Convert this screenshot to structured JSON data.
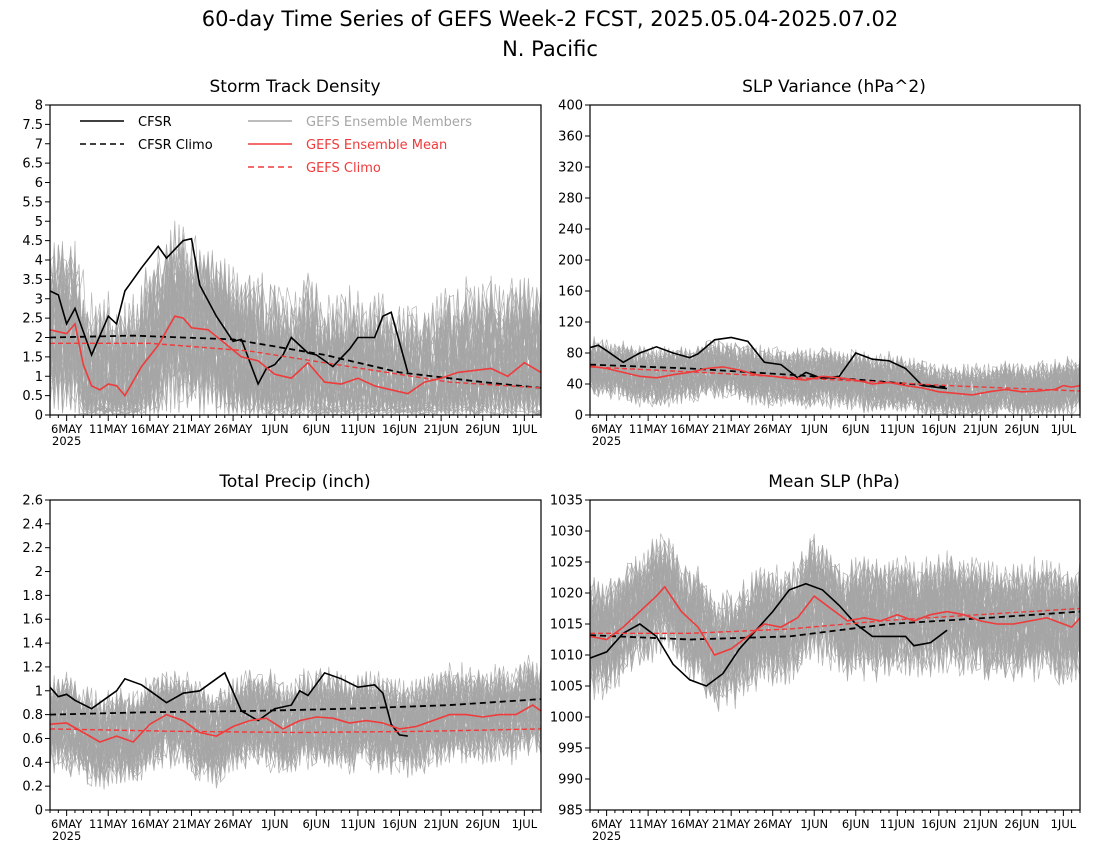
{
  "figure": {
    "title_line1": "60-day Time Series of GEFS Week-2 FCST, 2025.05.04-2025.07.02",
    "title_line2": "N. Pacific"
  },
  "colors": {
    "cfsr": "#000000",
    "ensemble_members": "#a6a6a6",
    "ensemble_mean": "#ef3b3b",
    "gefs_climo": "#ef3b3b"
  },
  "legend": {
    "cfsr": "CFSR",
    "cfsr_climo": "CFSR Climo",
    "members": "GEFS Ensemble Members",
    "mean": "GEFS Ensemble Mean",
    "gefs_climo": "GEFS Climo"
  },
  "x_axis": {
    "tick_labels": [
      "6MAY",
      "11MAY",
      "16MAY",
      "21MAY",
      "26MAY",
      "1JUN",
      "6JUN",
      "11JUN",
      "16JUN",
      "21JUN",
      "26JUN",
      "1JUL"
    ],
    "year_label": "2025"
  },
  "chart_data": [
    {
      "type": "line",
      "title": "Storm Track Density",
      "ylim": [
        0,
        8
      ],
      "yticks": [
        "0",
        "0.5",
        "1",
        "1.5",
        "2",
        "2.5",
        "3",
        "3.5",
        "4",
        "4.5",
        "5",
        "5.5",
        "6",
        "6.5",
        "7",
        "7.5",
        "8"
      ],
      "legend_placement": "top-left",
      "x_start": "2025-05-04",
      "x_end": "2025-07-02",
      "ensemble_band": [
        0,
        4.8
      ],
      "series": [
        {
          "name": "CFSR",
          "x": [
            "2025-05-04",
            "2025-05-05",
            "2025-05-06",
            "2025-05-07",
            "2025-05-09",
            "2025-05-11",
            "2025-05-12",
            "2025-05-13",
            "2025-05-15",
            "2025-05-17",
            "2025-05-18",
            "2025-05-20",
            "2025-05-21",
            "2025-05-22",
            "2025-05-24",
            "2025-05-26",
            "2025-05-27",
            "2025-05-29",
            "2025-05-30",
            "2025-05-31",
            "2025-06-01",
            "2025-06-02",
            "2025-06-04",
            "2025-06-05",
            "2025-06-07",
            "2025-06-09",
            "2025-06-10",
            "2025-06-11",
            "2025-06-12",
            "2025-06-13",
            "2025-06-14",
            "2025-06-16"
          ],
          "values": [
            3.2,
            3.1,
            2.35,
            2.75,
            1.55,
            2.55,
            2.35,
            3.2,
            3.8,
            4.35,
            4.05,
            4.5,
            4.55,
            3.35,
            2.55,
            1.9,
            1.95,
            0.8,
            1.2,
            1.3,
            1.55,
            2.0,
            1.6,
            1.55,
            1.25,
            1.7,
            2.0,
            2.0,
            2.0,
            2.55,
            2.65,
            1.1
          ]
        },
        {
          "name": "CFSR Climo",
          "x": [
            "2025-05-04",
            "2025-05-14",
            "2025-05-26",
            "2025-06-06",
            "2025-06-15",
            "2025-06-25",
            "2025-07-02"
          ],
          "values": [
            2.0,
            2.05,
            1.95,
            1.55,
            1.1,
            0.85,
            0.7
          ]
        },
        {
          "name": "GEFS Ensemble Mean",
          "x": [
            "2025-05-04",
            "2025-05-06",
            "2025-05-07",
            "2025-05-08",
            "2025-05-09",
            "2025-05-10",
            "2025-05-11",
            "2025-05-12",
            "2025-05-13",
            "2025-05-15",
            "2025-05-17",
            "2025-05-19",
            "2025-05-20",
            "2025-05-21",
            "2025-05-23",
            "2025-05-25",
            "2025-05-27",
            "2025-05-29",
            "2025-05-31",
            "2025-06-02",
            "2025-06-04",
            "2025-06-06",
            "2025-06-08",
            "2025-06-10",
            "2025-06-12",
            "2025-06-14",
            "2025-06-16",
            "2025-06-18",
            "2025-06-20",
            "2025-06-22",
            "2025-06-24",
            "2025-06-26",
            "2025-06-28",
            "2025-06-30",
            "2025-07-02"
          ],
          "values": [
            2.2,
            2.1,
            2.35,
            1.3,
            0.75,
            0.65,
            0.8,
            0.75,
            0.5,
            1.25,
            1.8,
            2.55,
            2.5,
            2.25,
            2.2,
            1.85,
            1.5,
            1.4,
            1.05,
            0.95,
            1.35,
            0.85,
            0.8,
            0.95,
            0.75,
            0.65,
            0.55,
            0.85,
            0.95,
            1.1,
            1.15,
            1.2,
            1.0,
            1.35,
            1.1
          ]
        },
        {
          "name": "GEFS Climo",
          "x": [
            "2025-05-04",
            "2025-05-16",
            "2025-05-28",
            "2025-06-09",
            "2025-06-21",
            "2025-07-02"
          ],
          "values": [
            1.85,
            1.85,
            1.65,
            1.25,
            0.85,
            0.7
          ]
        }
      ]
    },
    {
      "type": "line",
      "title": "SLP Variance (hPa^2)",
      "ylim": [
        0,
        400
      ],
      "yticks": [
        "0",
        "40",
        "80",
        "120",
        "160",
        "200",
        "240",
        "280",
        "320",
        "360",
        "400"
      ],
      "x_start": "2025-05-04",
      "x_end": "2025-07-02",
      "ensemble_band": [
        20,
        100
      ],
      "series": [
        {
          "name": "CFSR",
          "x": [
            "2025-05-04",
            "2025-05-05",
            "2025-05-06",
            "2025-05-08",
            "2025-05-10",
            "2025-05-12",
            "2025-05-14",
            "2025-05-16",
            "2025-05-17",
            "2025-05-19",
            "2025-05-21",
            "2025-05-23",
            "2025-05-25",
            "2025-05-27",
            "2025-05-29",
            "2025-05-30",
            "2025-06-01",
            "2025-06-03",
            "2025-06-05",
            "2025-06-07",
            "2025-06-09",
            "2025-06-11",
            "2025-06-13",
            "2025-06-16"
          ],
          "values": [
            87,
            90,
            83,
            68,
            80,
            88,
            80,
            74,
            79,
            97,
            100,
            95,
            68,
            65,
            48,
            55,
            47,
            50,
            80,
            72,
            70,
            60,
            38,
            34
          ]
        },
        {
          "name": "CFSR Climo",
          "x": [
            "2025-05-04",
            "2025-05-16",
            "2025-05-28",
            "2025-06-06",
            "2025-06-16"
          ],
          "values": [
            65,
            60,
            52,
            45,
            36
          ]
        },
        {
          "name": "GEFS Ensemble Mean",
          "x": [
            "2025-05-04",
            "2025-05-06",
            "2025-05-08",
            "2025-05-10",
            "2025-05-12",
            "2025-05-14",
            "2025-05-16",
            "2025-05-18",
            "2025-05-20",
            "2025-05-22",
            "2025-05-24",
            "2025-05-26",
            "2025-05-28",
            "2025-05-30",
            "2025-06-01",
            "2025-06-03",
            "2025-06-05",
            "2025-06-07",
            "2025-06-09",
            "2025-06-11",
            "2025-06-13",
            "2025-06-15",
            "2025-06-17",
            "2025-06-19",
            "2025-06-21",
            "2025-06-23",
            "2025-06-25",
            "2025-06-27",
            "2025-06-29",
            "2025-06-30",
            "2025-07-01",
            "2025-07-02"
          ],
          "values": [
            63,
            60,
            55,
            50,
            48,
            52,
            55,
            60,
            62,
            58,
            52,
            50,
            47,
            45,
            50,
            48,
            45,
            40,
            42,
            38,
            35,
            30,
            28,
            26,
            30,
            33,
            30,
            31,
            33,
            38,
            36,
            38
          ]
        },
        {
          "name": "GEFS Climo",
          "x": [
            "2025-05-04",
            "2025-05-19",
            "2025-06-03",
            "2025-06-18",
            "2025-07-02"
          ],
          "values": [
            62,
            54,
            45,
            37,
            31
          ]
        }
      ]
    },
    {
      "type": "line",
      "title": "Total Precip (inch)",
      "ylim": [
        0,
        2.6
      ],
      "yticks": [
        "0",
        "0.2",
        "0.4",
        "0.6",
        "0.8",
        "1",
        "1.2",
        "1.4",
        "1.6",
        "1.8",
        "2",
        "2.2",
        "2.4",
        "2.6"
      ],
      "x_start": "2025-05-04",
      "x_end": "2025-07-02",
      "ensemble_band": [
        0.3,
        1.15
      ],
      "series": [
        {
          "name": "CFSR",
          "x": [
            "2025-05-04",
            "2025-05-05",
            "2025-05-06",
            "2025-05-07",
            "2025-05-09",
            "2025-05-11",
            "2025-05-12",
            "2025-05-13",
            "2025-05-15",
            "2025-05-17",
            "2025-05-18",
            "2025-05-20",
            "2025-05-22",
            "2025-05-24",
            "2025-05-25",
            "2025-05-27",
            "2025-05-29",
            "2025-05-31",
            "2025-06-02",
            "2025-06-03",
            "2025-06-04",
            "2025-06-06",
            "2025-06-08",
            "2025-06-10",
            "2025-06-12",
            "2025-06-13",
            "2025-06-14",
            "2025-06-15",
            "2025-06-16"
          ],
          "values": [
            1.03,
            0.95,
            0.97,
            0.92,
            0.85,
            0.95,
            1.0,
            1.1,
            1.05,
            0.95,
            0.9,
            0.98,
            1.0,
            1.1,
            1.15,
            0.83,
            0.75,
            0.85,
            0.88,
            1.0,
            0.96,
            1.15,
            1.1,
            1.03,
            1.05,
            0.98,
            0.72,
            0.63,
            0.62
          ]
        },
        {
          "name": "CFSR Climo",
          "x": [
            "2025-05-04",
            "2025-05-16",
            "2025-05-28",
            "2025-06-09",
            "2025-06-21",
            "2025-07-02"
          ],
          "values": [
            0.8,
            0.82,
            0.83,
            0.85,
            0.88,
            0.93
          ]
        },
        {
          "name": "GEFS Ensemble Mean",
          "x": [
            "2025-05-04",
            "2025-05-06",
            "2025-05-08",
            "2025-05-10",
            "2025-05-12",
            "2025-05-14",
            "2025-05-16",
            "2025-05-18",
            "2025-05-20",
            "2025-05-22",
            "2025-05-24",
            "2025-05-26",
            "2025-05-28",
            "2025-05-30",
            "2025-06-01",
            "2025-06-03",
            "2025-06-05",
            "2025-06-07",
            "2025-06-09",
            "2025-06-11",
            "2025-06-13",
            "2025-06-15",
            "2025-06-17",
            "2025-06-19",
            "2025-06-21",
            "2025-06-23",
            "2025-06-25",
            "2025-06-27",
            "2025-06-29",
            "2025-07-01",
            "2025-07-02"
          ],
          "values": [
            0.72,
            0.73,
            0.65,
            0.57,
            0.62,
            0.57,
            0.72,
            0.8,
            0.75,
            0.65,
            0.62,
            0.7,
            0.75,
            0.77,
            0.68,
            0.75,
            0.78,
            0.77,
            0.73,
            0.75,
            0.73,
            0.68,
            0.7,
            0.75,
            0.8,
            0.8,
            0.78,
            0.8,
            0.8,
            0.88,
            0.83
          ]
        },
        {
          "name": "GEFS Climo",
          "x": [
            "2025-05-04",
            "2025-05-19",
            "2025-06-03",
            "2025-06-18",
            "2025-07-02"
          ],
          "values": [
            0.68,
            0.66,
            0.65,
            0.66,
            0.68
          ]
        }
      ]
    },
    {
      "type": "line",
      "title": "Mean SLP (hPa)",
      "ylim": [
        985,
        1035
      ],
      "yticks": [
        "985",
        "990",
        "995",
        "1000",
        "1005",
        "1010",
        "1015",
        "1020",
        "1025",
        "1030",
        "1035"
      ],
      "x_start": "2025-05-04",
      "x_end": "2025-07-02",
      "ensemble_band": [
        1005,
        1025
      ],
      "series": [
        {
          "name": "CFSR",
          "x": [
            "2025-05-04",
            "2025-05-06",
            "2025-05-08",
            "2025-05-10",
            "2025-05-12",
            "2025-05-14",
            "2025-05-16",
            "2025-05-18",
            "2025-05-20",
            "2025-05-22",
            "2025-05-24",
            "2025-05-26",
            "2025-05-28",
            "2025-05-30",
            "2025-06-01",
            "2025-06-03",
            "2025-06-05",
            "2025-06-07",
            "2025-06-09",
            "2025-06-11",
            "2025-06-12",
            "2025-06-14",
            "2025-06-16"
          ],
          "values": [
            1009.5,
            1010.5,
            1013.5,
            1015,
            1013,
            1008.5,
            1006,
            1005,
            1007,
            1011,
            1014,
            1017,
            1020.5,
            1021.5,
            1020.5,
            1018,
            1015,
            1013,
            1013,
            1013,
            1011.5,
            1012,
            1014
          ]
        },
        {
          "name": "CFSR Climo",
          "x": [
            "2025-05-04",
            "2025-05-16",
            "2025-05-28",
            "2025-06-09",
            "2025-06-21",
            "2025-07-02"
          ],
          "values": [
            1013.2,
            1012.5,
            1013,
            1015,
            1016,
            1017
          ]
        },
        {
          "name": "GEFS Ensemble Mean",
          "x": [
            "2025-05-04",
            "2025-05-06",
            "2025-05-08",
            "2025-05-10",
            "2025-05-12",
            "2025-05-13",
            "2025-05-15",
            "2025-05-17",
            "2025-05-19",
            "2025-05-21",
            "2025-05-23",
            "2025-05-25",
            "2025-05-27",
            "2025-05-29",
            "2025-05-31",
            "2025-06-02",
            "2025-06-04",
            "2025-06-06",
            "2025-06-08",
            "2025-06-10",
            "2025-06-12",
            "2025-06-14",
            "2025-06-16",
            "2025-06-18",
            "2025-06-20",
            "2025-06-22",
            "2025-06-24",
            "2025-06-26",
            "2025-06-28",
            "2025-06-30",
            "2025-07-01",
            "2025-07-02"
          ],
          "values": [
            1013,
            1012.5,
            1014.5,
            1017,
            1019.5,
            1021,
            1017,
            1014.5,
            1010,
            1011,
            1013,
            1015,
            1014.5,
            1016,
            1019.5,
            1017.5,
            1015.5,
            1016,
            1015.5,
            1016.5,
            1015.5,
            1016.5,
            1017,
            1016.5,
            1015.5,
            1015,
            1015,
            1015.5,
            1016,
            1015,
            1014.5,
            1016
          ]
        },
        {
          "name": "GEFS Climo",
          "x": [
            "2025-05-04",
            "2025-05-16",
            "2025-05-28",
            "2025-06-09",
            "2025-06-21",
            "2025-07-02"
          ],
          "values": [
            1013.5,
            1013.5,
            1014.2,
            1015.6,
            1016.6,
            1017.5
          ]
        }
      ]
    }
  ]
}
